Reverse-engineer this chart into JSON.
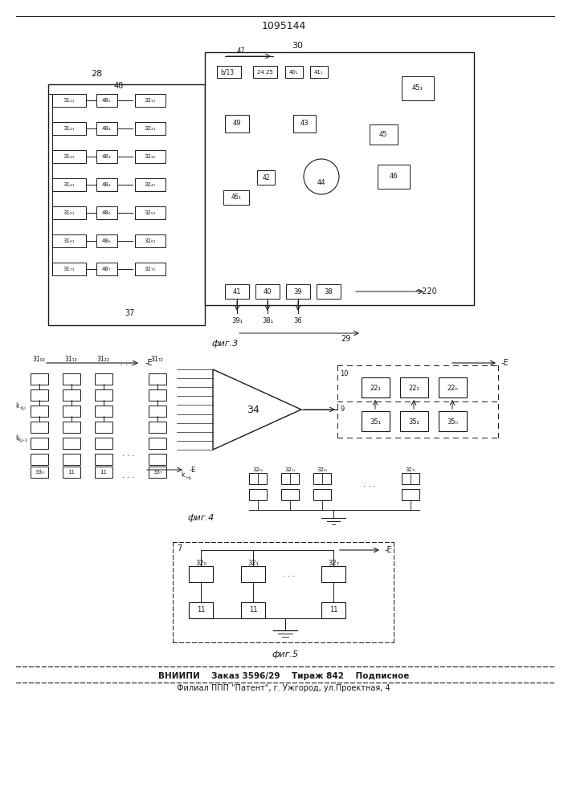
{
  "title": "1095144",
  "fig3_label": "фиг.3",
  "fig4_label": "фиг.4",
  "fig5_label": "фиг.5",
  "footer_line1": "ВНИИПИ    Заказ 3596/29    Тираж 842    Подписное",
  "footer_line2": "Филиал ППП \"Патент\", г. Ужгород, ул.Проектная, 4",
  "bg_color": "#ffffff",
  "line_color": "#1a1a1a"
}
